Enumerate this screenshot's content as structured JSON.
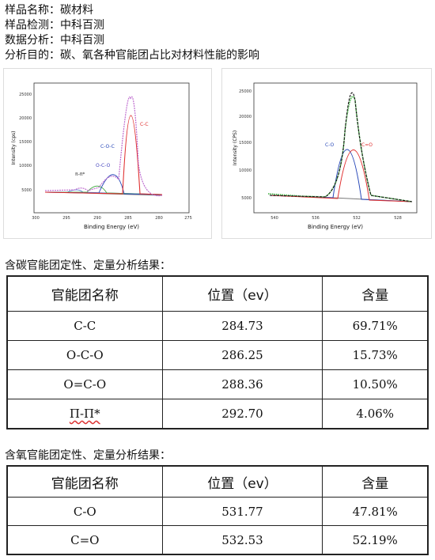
{
  "info": [
    "样品名称：碳材料",
    "样品检测：中科百测",
    "数据分析：中科百测",
    "分析目的：碳、氧各种官能团占比对材料性能的影响"
  ],
  "charts": {
    "carbon": {
      "ylabel": "Intensity (cps)",
      "xlabel": "Binding Energy (eV)",
      "xticks": [
        "300",
        "295",
        "290",
        "285",
        "280",
        "275"
      ],
      "yticks": [
        "25000",
        "20000",
        "15000",
        "10000",
        "5000"
      ],
      "peak_labels": [
        "C-C",
        "C-O-C",
        "O-C-O",
        "π-π*"
      ]
    },
    "oxygen": {
      "ylabel": "Intensity (CPS)",
      "xlabel": "Binding Energy (eV)",
      "xticks": [
        "540",
        "536",
        "532",
        "528"
      ],
      "yticks": [
        "25000",
        "20000",
        "15000",
        "10000",
        "5000"
      ],
      "peak_labels": [
        "C-O",
        "C=O"
      ]
    }
  },
  "carbon_section": {
    "title": "含碳官能团定性、定量分析结果：",
    "headers": [
      "官能团名称",
      "位置（ev）",
      "含量"
    ],
    "rows": [
      [
        "C-C",
        "284.73",
        "69.71%"
      ],
      [
        "O-C-O",
        "286.25",
        "15.73%"
      ],
      [
        "O=C-O",
        "288.36",
        "10.50%"
      ],
      [
        "Π-Π*",
        "292.70",
        "4.06%"
      ]
    ]
  },
  "oxygen_section": {
    "title": "含氧官能团定性、定量分析结果：",
    "headers": [
      "官能团名称",
      "位置（ev）",
      "含量"
    ],
    "rows": [
      [
        "C-O",
        "531.77",
        "47.81%"
      ],
      [
        "C=O",
        "532.53",
        "52.19%"
      ]
    ]
  }
}
